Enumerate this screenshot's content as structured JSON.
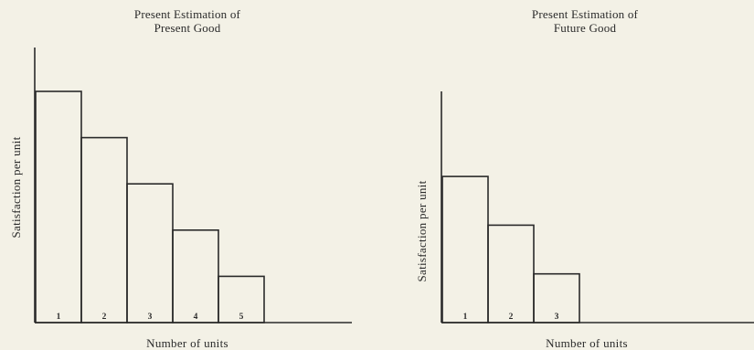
{
  "chart_data": [
    {
      "type": "bar",
      "title": [
        "Present Estimation of",
        "Present Good"
      ],
      "xlabel": "Number of units",
      "ylabel": "Satisfaction per unit",
      "categories": [
        "1",
        "2",
        "3",
        "4",
        "5"
      ],
      "values": [
        5,
        4,
        3,
        2,
        1
      ],
      "ylim": [
        0,
        5.5
      ],
      "grid": false
    },
    {
      "type": "bar",
      "title": [
        "Present Estimation of",
        "Future Good"
      ],
      "xlabel": "Number of units",
      "ylabel": "Satisfaction per unit",
      "categories": [
        "1",
        "2",
        "3"
      ],
      "values": [
        3,
        2,
        1
      ],
      "ylim": [
        0,
        5.5
      ],
      "grid": false
    }
  ]
}
